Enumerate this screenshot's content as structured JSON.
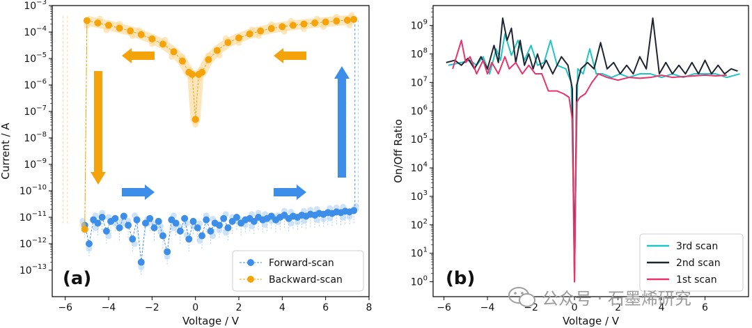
{
  "chart_data": [
    {
      "type": "scatter",
      "panel_label": "(a)",
      "xlabel": "Voltage / V",
      "ylabel": "Current / A",
      "x_scale": "linear",
      "y_scale": "log",
      "xlim": [
        -6.6,
        8.0
      ],
      "ylim": [
        1e-14,
        0.001
      ],
      "x_ticks": [
        -6,
        -4,
        -2,
        0,
        2,
        4,
        6,
        8
      ],
      "x_tick_labels": [
        "−6",
        "−4",
        "−2",
        "0",
        "2",
        "4",
        "6",
        "8"
      ],
      "y_tick_exponents": [
        -13,
        -12,
        -11,
        -10,
        -9,
        -8,
        -7,
        -6,
        -5,
        -4,
        -3
      ],
      "y_tick_base": "10",
      "legend_position": "lower-right",
      "series": [
        {
          "name": "Forward-scan",
          "color": "#3d8ee8",
          "marker": "circle",
          "linestyle": "dashed",
          "x": [
            -5.1,
            -4.9,
            -4.7,
            -4.5,
            -4.3,
            -4.1,
            -3.9,
            -3.7,
            -3.5,
            -3.3,
            -3.1,
            -2.9,
            -2.7,
            -2.5,
            -2.3,
            -2.1,
            -1.9,
            -1.7,
            -1.5,
            -1.3,
            -1.1,
            -0.9,
            -0.7,
            -0.5,
            -0.3,
            -0.1,
            0.1,
            0.3,
            0.5,
            0.7,
            0.9,
            1.1,
            1.3,
            1.5,
            1.7,
            1.9,
            2.1,
            2.3,
            2.5,
            2.7,
            2.9,
            3.1,
            3.3,
            3.5,
            3.7,
            3.9,
            4.1,
            4.3,
            4.5,
            4.7,
            4.9,
            5.1,
            5.3,
            5.5,
            5.7,
            5.9,
            6.1,
            6.3,
            6.5,
            6.7,
            6.9,
            7.1,
            7.3
          ],
          "y": [
            5e-12,
            1e-12,
            8e-12,
            6e-12,
            1e-11,
            3e-12,
            7e-12,
            9e-12,
            4e-12,
            1.1e-11,
            5e-12,
            1.5e-12,
            8e-12,
            2e-13,
            6e-12,
            9e-12,
            4e-12,
            7e-12,
            2e-12,
            5e-13,
            8e-12,
            6e-12,
            3e-12,
            9e-12,
            1.5e-12,
            7e-12,
            4e-12,
            2e-12,
            8e-12,
            3e-12,
            6e-12,
            5e-12,
            9e-12,
            4e-12,
            7e-12,
            1e-11,
            6e-12,
            8e-12,
            9e-12,
            7e-12,
            1e-11,
            8e-12,
            9e-12,
            1.1e-11,
            8e-12,
            1e-11,
            1.2e-11,
            9e-12,
            1.1e-11,
            1e-11,
            1.2e-11,
            1.1e-11,
            1.3e-11,
            1.2e-11,
            1.4e-11,
            1.3e-11,
            1.5e-11,
            1.4e-11,
            1.6e-11,
            1.5e-11,
            1.7e-11,
            1.6e-11,
            1.8e-11
          ],
          "switch_x": 7.35,
          "switch_y": 0.0003
        },
        {
          "name": "Backward-scan",
          "color": "#f5a30a",
          "marker": "circle",
          "linestyle": "dashed",
          "x": [
            -5.1,
            -5.0,
            -4.5,
            -4.0,
            -3.5,
            -3.0,
            -2.5,
            -2.0,
            -1.5,
            -1.0,
            -0.6,
            -0.3,
            -0.15,
            0.0,
            0.15,
            0.3,
            0.6,
            1.0,
            1.5,
            2.0,
            2.5,
            3.0,
            3.5,
            4.0,
            4.5,
            5.0,
            5.5,
            6.0,
            6.5,
            7.0,
            7.3
          ],
          "y": [
            3.5e-12,
            0.00027,
            0.00022,
            0.00018,
            0.00014,
            0.00011,
            8e-05,
            5.5e-05,
            3.5e-05,
            1.8e-05,
            8e-06,
            3e-06,
            2.5e-06,
            5e-08,
            2.5e-06,
            3e-06,
            9e-06,
            2e-05,
            4e-05,
            6e-05,
            8.5e-05,
            0.00011,
            0.000135,
            0.00016,
            0.00018,
            0.0002,
            0.00022,
            0.00024,
            0.00026,
            0.00028,
            0.0003
          ]
        }
      ],
      "annotations": [
        "scan-direction arrows (orange: backward; blue: forward)"
      ]
    },
    {
      "type": "line",
      "panel_label": "(b)",
      "xlabel": "Voltage / V",
      "ylabel": "On/Off Ratio",
      "x_scale": "linear",
      "y_scale": "log",
      "xlim": [
        -6.5,
        8.0
      ],
      "ylim": [
        0.3,
        5000000000.0
      ],
      "x_ticks": [
        -6,
        -4,
        -2,
        0,
        2,
        4,
        6
      ],
      "x_tick_labels": [
        "−6",
        "−4",
        "−2",
        "0",
        "2",
        "4",
        "6"
      ],
      "y_tick_exponents": [
        0,
        1,
        2,
        3,
        4,
        5,
        6,
        7,
        8,
        9
      ],
      "y_tick_base": "10",
      "legend_position": "lower-right",
      "series": [
        {
          "name": "3rd scan",
          "color": "#1fc4c4",
          "x": [
            -5.8,
            -5.2,
            -4.8,
            -4.5,
            -4.2,
            -3.9,
            -3.6,
            -3.4,
            -3.2,
            -2.9,
            -2.6,
            -2.3,
            -2.0,
            -1.7,
            -1.4,
            -1.1,
            -0.8,
            -0.4,
            -0.15,
            0.0,
            0.15,
            0.4,
            0.7,
            1.0,
            1.3,
            1.7,
            2.1,
            2.5,
            3.0,
            3.5,
            4.0,
            4.5,
            5.0,
            5.5,
            6.0,
            6.5,
            7.0,
            7.6
          ],
          "y": [
            40000000.0,
            50000000.0,
            60000000.0,
            40000000.0,
            80000000.0,
            20000000.0,
            150000000.0,
            60000000.0,
            500000000.0,
            90000000.0,
            300000000.0,
            60000000.0,
            200000000.0,
            40000000.0,
            50000000.0,
            300000000.0,
            40000000.0,
            30000000.0,
            10000000.0,
            15.0,
            30000000.0,
            20000000.0,
            150000000.0,
            20000000.0,
            20000000.0,
            15000000.0,
            20000000.0,
            15000000.0,
            20000000.0,
            20000000.0,
            15000000.0,
            20000000.0,
            15000000.0,
            20000000.0,
            20000000.0,
            20000000.0,
            15000000.0,
            20000000.0
          ]
        },
        {
          "name": "2nd scan",
          "color": "#1f2430",
          "x": [
            -5.9,
            -5.5,
            -5.2,
            -4.9,
            -4.6,
            -4.3,
            -4.0,
            -3.7,
            -3.5,
            -3.3,
            -3.1,
            -2.9,
            -2.7,
            -2.5,
            -2.3,
            -2.1,
            -1.9,
            -1.7,
            -1.5,
            -1.3,
            -1.0,
            -0.6,
            -0.3,
            -0.1,
            0.0,
            0.1,
            0.3,
            0.6,
            0.9,
            1.2,
            1.5,
            1.8,
            2.1,
            2.4,
            2.7,
            3.0,
            3.3,
            3.6,
            3.9,
            4.2,
            4.5,
            4.8,
            5.1,
            5.4,
            5.7,
            6.0,
            6.3,
            6.6,
            6.9,
            7.2,
            7.5
          ],
          "y": [
            50000000.0,
            60000000.0,
            40000000.0,
            70000000.0,
            30000000.0,
            80000000.0,
            30000000.0,
            200000000.0,
            50000000.0,
            1800000000.0,
            300000000.0,
            800000000.0,
            50000000.0,
            300000000.0,
            40000000.0,
            100000000.0,
            30000000.0,
            100000000.0,
            30000000.0,
            60000000.0,
            20000000.0,
            80000000.0,
            40000000.0,
            6000000.0,
            1.0,
            8000000.0,
            30000000.0,
            50000000.0,
            30000000.0,
            250000000.0,
            30000000.0,
            50000000.0,
            20000000.0,
            40000000.0,
            20000000.0,
            80000000.0,
            30000000.0,
            1800000000.0,
            20000000.0,
            50000000.0,
            20000000.0,
            40000000.0,
            20000000.0,
            50000000.0,
            20000000.0,
            60000000.0,
            20000000.0,
            40000000.0,
            20000000.0,
            30000000.0,
            25000000.0
          ]
        },
        {
          "name": "1st scan",
          "color": "#e8336a",
          "x": [
            -5.6,
            -5.2,
            -5.0,
            -4.8,
            -4.5,
            -4.2,
            -4.0,
            -3.8,
            -3.5,
            -3.2,
            -3.0,
            -2.7,
            -2.4,
            -2.1,
            -1.8,
            -1.5,
            -1.2,
            -0.8,
            -0.5,
            -0.25,
            -0.1,
            0.0,
            0.1,
            0.25,
            0.5,
            0.8,
            1.1,
            1.5,
            2.0,
            2.5,
            3.0,
            3.5,
            4.0,
            4.5,
            5.0,
            5.5,
            6.0,
            6.5,
            7.0
          ],
          "y": [
            30000000.0,
            300000000.0,
            50000000.0,
            80000000.0,
            20000000.0,
            60000000.0,
            20000000.0,
            50000000.0,
            20000000.0,
            80000000.0,
            30000000.0,
            50000000.0,
            20000000.0,
            40000000.0,
            20000000.0,
            20000000.0,
            5000000.0,
            5000000.0,
            4000000.0,
            3000000.0,
            500000.0,
            1.0,
            2000000.0,
            3000000.0,
            4000000.0,
            10000000.0,
            20000000.0,
            15000000.0,
            12000000.0,
            15000000.0,
            14000000.0,
            15000000.0,
            18000000.0,
            15000000.0,
            16000000.0,
            17000000.0,
            18000000.0,
            17000000.0,
            18000000.0
          ]
        }
      ]
    }
  ],
  "watermark": {
    "text": "公众号 · 石墨烯研究",
    "icon": "wechat-icon"
  },
  "colors": {
    "forward": "#3d8ee8",
    "backward": "#f5a30a",
    "forward_light": "#a9cdf4",
    "backward_light": "#fbd68e"
  }
}
